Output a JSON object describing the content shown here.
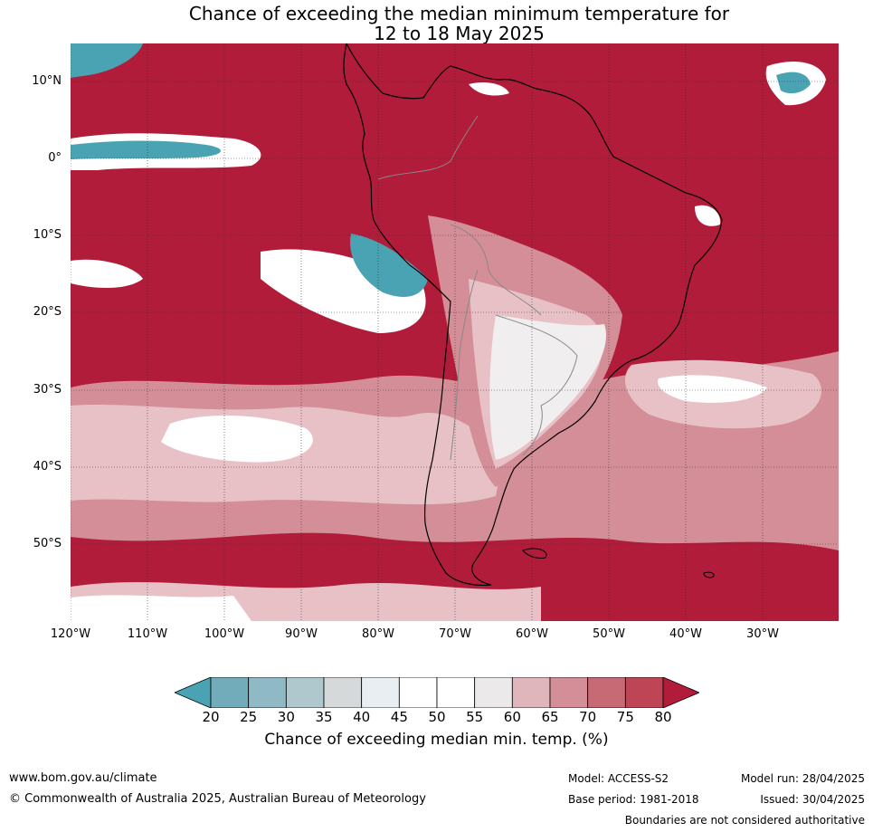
{
  "title_line1": "Chance of exceeding the median minimum temperature for",
  "title_line2": "12 to 18 May 2025",
  "lat_labels": [
    "10°N",
    "0°",
    "10°S",
    "20°S",
    "30°S",
    "40°S",
    "50°S"
  ],
  "lon_labels": [
    "120°W",
    "110°W",
    "100°W",
    "90°W",
    "80°W",
    "70°W",
    "60°W",
    "50°W",
    "40°W",
    "30°W"
  ],
  "colorbar": {
    "ticks": [
      "20",
      "25",
      "30",
      "35",
      "40",
      "45",
      "50",
      "55",
      "60",
      "65",
      "70",
      "75",
      "80"
    ],
    "colors": [
      "#4aa3b2",
      "#72abb9",
      "#8fb9c5",
      "#aec8cd",
      "#d6d9da",
      "#e8eef1",
      "#ffffff",
      "#ffffff",
      "#ebe9ea",
      "#e0b6bd",
      "#d48e98",
      "#c86a76",
      "#bd4555",
      "#b01c3a"
    ],
    "label": "Chance of exceeding median min. temp. (%)"
  },
  "colors": {
    "high": "#b01c3a",
    "mid": "#d48e98",
    "low_mid": "#e8c1c7",
    "neutral": "#f0eeee",
    "low": "#4aa3b2"
  },
  "footer": {
    "website": "www.bom.gov.au/climate",
    "copyright": "© Commonwealth of Australia 2025, Australian Bureau of Meteorology",
    "model": "Model: ACCESS-S2",
    "base_period": "Base period: 1981-2018",
    "model_run": "Model run: 28/04/2025",
    "issued": "Issued: 30/04/2025",
    "disclaimer": "Boundaries are not considered authoritative"
  }
}
